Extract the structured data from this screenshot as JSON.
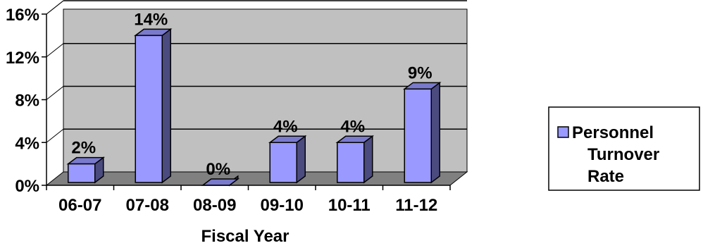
{
  "chart_data": {
    "type": "bar",
    "categories": [
      "06-07",
      "07-08",
      "08-09",
      "09-10",
      "10-11",
      "11-12"
    ],
    "series": [
      {
        "name": "Personnel Turnover Rate",
        "values": [
          2,
          14,
          0,
          4,
          4,
          9
        ],
        "data_labels": [
          "2%",
          "14%",
          "0%",
          "4%",
          "4%",
          "9%"
        ]
      }
    ],
    "xlabel": "Fiscal Year",
    "ylabel": "",
    "ylim": [
      0,
      16
    ],
    "yticks": [
      0,
      4,
      8,
      12,
      16
    ],
    "ytick_labels": [
      "0%",
      "4%",
      "8%",
      "12%",
      "16%"
    ],
    "grid": true,
    "legend_position": "right",
    "legend_lines": [
      "Personnel",
      "Turnover",
      "Rate"
    ],
    "colors": {
      "bar_front": "#9999ff",
      "bar_side": "#4b4b7f",
      "bar_top": "#7a7acc",
      "plot_wall": "#c0c0c0",
      "plot_floor": "#808080",
      "axis": "#000000"
    }
  }
}
